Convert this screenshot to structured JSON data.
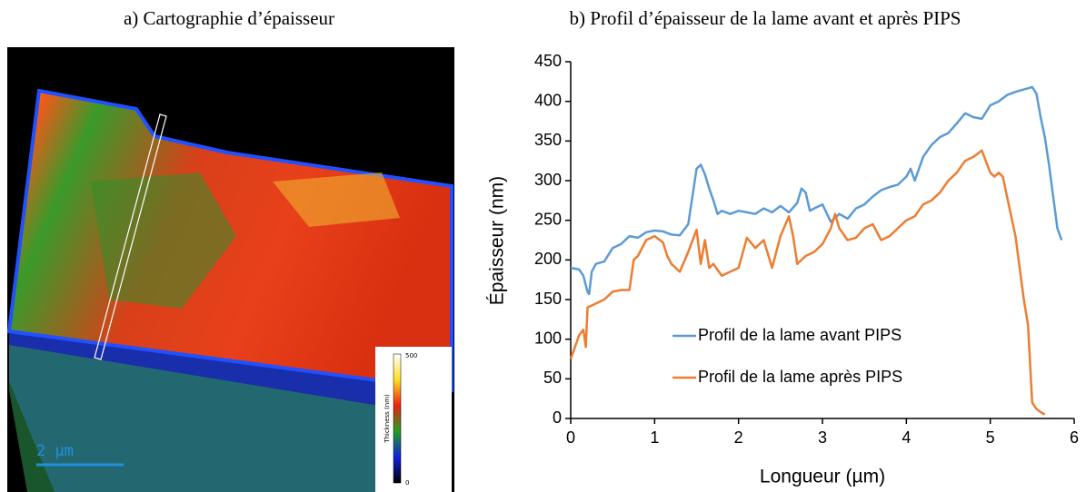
{
  "panel_a": {
    "title": "a) Cartographie d’épaisseur",
    "scale_bar_label": "2 µm",
    "colorbar_title": "Thickness (nm)",
    "colorbar_max": "500",
    "colorbar_min": "0"
  },
  "chart_data": {
    "type": "line",
    "title": "b) Profil d’épaisseur de la lame avant et après PIPS",
    "xlabel": "Longueur (µm)",
    "ylabel": "Épaisseur (nm)",
    "xlim": [
      0,
      6
    ],
    "xticks": [
      0,
      1,
      2,
      3,
      4,
      5,
      6
    ],
    "ylim": [
      0,
      450
    ],
    "yticks": [
      0,
      50,
      100,
      150,
      200,
      250,
      300,
      350,
      400,
      450
    ],
    "grid": false,
    "legend": "center",
    "series": [
      {
        "name": "Profil de la lame avant PIPS",
        "color": "#5b9bd5",
        "x": [
          0,
          0.1,
          0.15,
          0.2,
          0.22,
          0.25,
          0.3,
          0.4,
          0.5,
          0.6,
          0.7,
          0.8,
          0.9,
          1.0,
          1.1,
          1.2,
          1.3,
          1.4,
          1.45,
          1.5,
          1.55,
          1.6,
          1.65,
          1.7,
          1.75,
          1.8,
          1.9,
          2.0,
          2.1,
          2.2,
          2.3,
          2.4,
          2.5,
          2.6,
          2.7,
          2.75,
          2.8,
          2.85,
          2.9,
          3.0,
          3.1,
          3.2,
          3.3,
          3.4,
          3.5,
          3.6,
          3.7,
          3.8,
          3.9,
          4.0,
          4.05,
          4.1,
          4.2,
          4.3,
          4.4,
          4.5,
          4.6,
          4.7,
          4.8,
          4.9,
          5.0,
          5.1,
          5.2,
          5.3,
          5.4,
          5.5,
          5.55,
          5.6,
          5.65,
          5.7,
          5.75,
          5.8,
          5.85
        ],
        "values": [
          190,
          188,
          180,
          160,
          157,
          185,
          195,
          198,
          215,
          220,
          230,
          228,
          235,
          237,
          236,
          232,
          231,
          245,
          280,
          315,
          320,
          308,
          290,
          275,
          258,
          262,
          258,
          262,
          260,
          258,
          265,
          260,
          268,
          260,
          272,
          290,
          285,
          262,
          265,
          270,
          248,
          258,
          252,
          265,
          270,
          280,
          288,
          292,
          295,
          305,
          315,
          300,
          330,
          345,
          355,
          360,
          372,
          385,
          380,
          378,
          395,
          400,
          408,
          412,
          415,
          418,
          410,
          380,
          355,
          320,
          280,
          240,
          225
        ]
      },
      {
        "name": "Profil de la lame après PIPS",
        "color": "#ed7d31",
        "x": [
          0,
          0.05,
          0.1,
          0.15,
          0.18,
          0.2,
          0.3,
          0.4,
          0.5,
          0.6,
          0.7,
          0.75,
          0.8,
          0.9,
          1.0,
          1.1,
          1.15,
          1.2,
          1.3,
          1.4,
          1.5,
          1.55,
          1.6,
          1.65,
          1.7,
          1.8,
          1.9,
          2.0,
          2.1,
          2.2,
          2.3,
          2.4,
          2.5,
          2.6,
          2.65,
          2.7,
          2.8,
          2.9,
          3.0,
          3.1,
          3.15,
          3.2,
          3.3,
          3.4,
          3.5,
          3.6,
          3.7,
          3.8,
          3.9,
          4.0,
          4.1,
          4.2,
          4.3,
          4.4,
          4.5,
          4.6,
          4.7,
          4.8,
          4.9,
          5.0,
          5.05,
          5.1,
          5.15,
          5.2,
          5.3,
          5.4,
          5.45,
          5.5,
          5.55,
          5.6,
          5.65
        ],
        "values": [
          75,
          90,
          105,
          112,
          90,
          140,
          145,
          150,
          160,
          162,
          162,
          200,
          205,
          225,
          230,
          222,
          205,
          195,
          185,
          210,
          238,
          195,
          225,
          190,
          195,
          180,
          185,
          190,
          228,
          215,
          225,
          190,
          230,
          255,
          230,
          195,
          205,
          210,
          220,
          240,
          258,
          240,
          225,
          228,
          240,
          245,
          225,
          230,
          240,
          250,
          255,
          270,
          275,
          285,
          300,
          310,
          325,
          330,
          338,
          310,
          305,
          310,
          305,
          280,
          230,
          150,
          118,
          20,
          12,
          8,
          5
        ]
      }
    ]
  }
}
